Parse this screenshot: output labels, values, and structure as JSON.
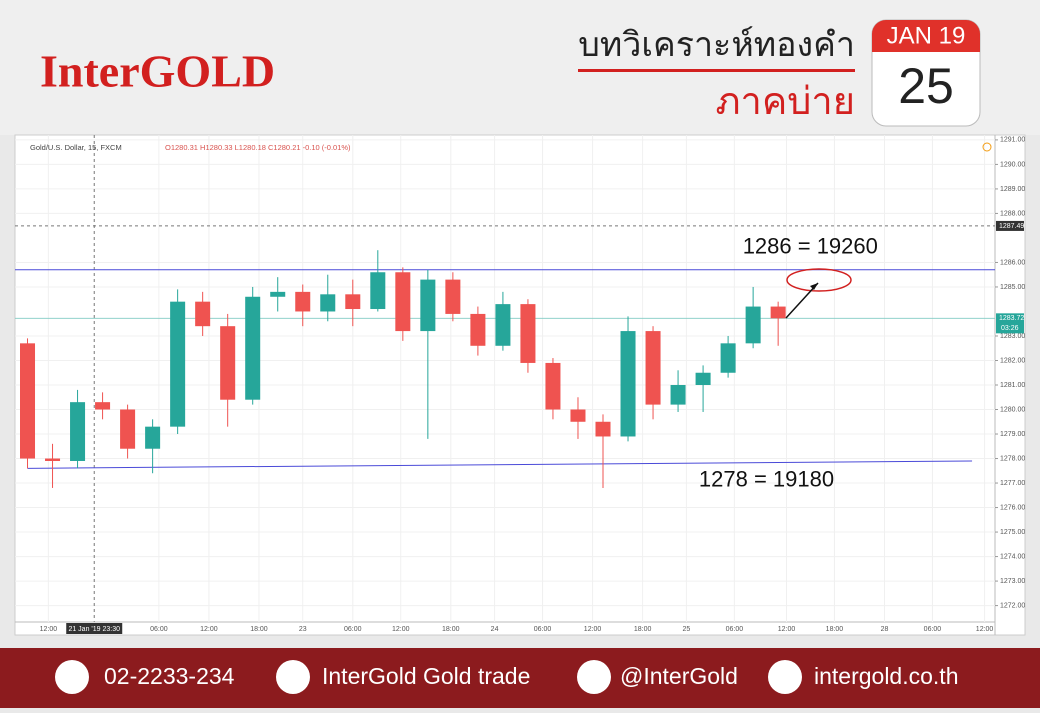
{
  "header": {
    "logo": "InterGOLD",
    "title": "บทวิเคราะห์ทองคำ",
    "subtitle": "ภาคบ่าย"
  },
  "calendar": {
    "month": "JAN 19",
    "day": "25"
  },
  "chart_data": {
    "type": "candlestick",
    "symbol": "Gold/U.S. Dollar, 15, FXCM",
    "ohlc_info": "O1280.31  H1280.33  L1280.18  C1280.21  -0.10 (-0.01%)",
    "up_color": "#26a69a",
    "down_color": "#ef5350",
    "x": [
      6,
      18,
      30,
      42,
      54,
      66,
      78,
      90,
      102,
      114,
      126,
      138,
      150,
      162,
      174,
      186,
      198,
      210,
      222,
      234,
      246,
      258,
      270,
      282,
      294,
      306,
      318,
      330,
      342,
      354,
      366
    ],
    "open": [
      1282.7,
      1278.0,
      1277.9,
      1280.3,
      1280.0,
      1278.4,
      1279.3,
      1284.4,
      1283.4,
      1280.4,
      1284.6,
      1284.8,
      1284.0,
      1284.7,
      1284.1,
      1285.6,
      1283.2,
      1285.3,
      1283.9,
      1282.6,
      1284.3,
      1281.9,
      1280.0,
      1279.5,
      1278.9,
      1283.2,
      1280.2,
      1281.0,
      1281.5,
      1282.7,
      1284.2
    ],
    "high": [
      1282.9,
      1278.6,
      1280.8,
      1280.7,
      1280.2,
      1279.6,
      1284.9,
      1284.8,
      1283.9,
      1285.0,
      1285.4,
      1285.1,
      1285.5,
      1285.3,
      1286.5,
      1285.8,
      1285.7,
      1285.6,
      1284.2,
      1284.8,
      1284.5,
      1282.1,
      1280.5,
      1279.8,
      1283.8,
      1283.4,
      1281.6,
      1281.8,
      1283.0,
      1285.0,
      1284.4
    ],
    "low": [
      1277.6,
      1276.8,
      1277.6,
      1279.6,
      1278.0,
      1277.4,
      1279.0,
      1283.0,
      1279.3,
      1280.2,
      1284.0,
      1283.4,
      1283.6,
      1283.4,
      1284.0,
      1282.8,
      1278.8,
      1283.6,
      1282.2,
      1282.4,
      1281.5,
      1279.6,
      1278.8,
      1276.8,
      1278.7,
      1279.6,
      1279.9,
      1279.9,
      1281.3,
      1282.5,
      1282.6
    ],
    "close": [
      1278.0,
      1277.9,
      1280.3,
      1280.0,
      1278.4,
      1279.3,
      1284.4,
      1283.4,
      1280.4,
      1284.6,
      1284.8,
      1284.0,
      1284.7,
      1284.1,
      1285.6,
      1283.2,
      1285.3,
      1283.9,
      1282.6,
      1284.3,
      1281.9,
      1280.0,
      1279.5,
      1278.9,
      1283.2,
      1280.2,
      1281.0,
      1281.5,
      1282.7,
      1284.2,
      1283.72
    ],
    "xlim": [
      0,
      470
    ],
    "xticks": [
      {
        "value": 16,
        "label": "12:00"
      },
      {
        "value": 69,
        "label": "06:00"
      },
      {
        "value": 93,
        "label": "12:00"
      },
      {
        "value": 117,
        "label": "18:00"
      },
      {
        "value": 138,
        "label": "23"
      },
      {
        "value": 162,
        "label": "06:00"
      },
      {
        "value": 185,
        "label": "12:00"
      },
      {
        "value": 209,
        "label": "18:00"
      },
      {
        "value": 230,
        "label": "24"
      },
      {
        "value": 253,
        "label": "06:00"
      },
      {
        "value": 277,
        "label": "12:00"
      },
      {
        "value": 301,
        "label": "18:00"
      },
      {
        "value": 322,
        "label": "25"
      },
      {
        "value": 345,
        "label": "06:00"
      },
      {
        "value": 370,
        "label": "12:00"
      },
      {
        "value": 393,
        "label": "18:00"
      },
      {
        "value": 417,
        "label": "28"
      },
      {
        "value": 440,
        "label": "06:00"
      },
      {
        "value": 465,
        "label": "12:00"
      }
    ],
    "ylim": [
      1270.8,
      1291.2
    ],
    "yticks": [
      {
        "value": 1272,
        "label": "1272.00"
      },
      {
        "value": 1273,
        "label": "1273.00"
      },
      {
        "value": 1274,
        "label": "1274.00"
      },
      {
        "value": 1275,
        "label": "1275.00"
      },
      {
        "value": 1276,
        "label": "1276.00"
      },
      {
        "value": 1277,
        "label": "1277.00"
      },
      {
        "value": 1278,
        "label": "1278.00"
      },
      {
        "value": 1279,
        "label": "1279.00"
      },
      {
        "value": 1280,
        "label": "1280.00"
      },
      {
        "value": 1281,
        "label": "1281.00"
      },
      {
        "value": 1282,
        "label": "1282.00"
      },
      {
        "value": 1283,
        "label": "1283.00"
      },
      {
        "value": 1285,
        "label": "1285.00"
      },
      {
        "value": 1286,
        "label": "1286.00"
      },
      {
        "value": 1288,
        "label": "1288.00"
      },
      {
        "value": 1289,
        "label": "1289.00"
      },
      {
        "value": 1290,
        "label": "1290.00"
      },
      {
        "value": 1291,
        "label": "1291.00"
      }
    ],
    "grid": true,
    "crosshair_time": {
      "value": 38,
      "label": "21 Jan '19 23:30"
    },
    "crosshair_price": {
      "value": 1287.49,
      "label": "1287.49"
    },
    "last_price": {
      "value": 1283.72,
      "label": "1283.72"
    },
    "countdown": "03:26",
    "resistance": {
      "value": 1285.7,
      "color": "#4a4ad8"
    },
    "support": {
      "x": [
        6,
        459
      ],
      "values": [
        1277.6,
        1277.9
      ],
      "color": "#4a4ad8"
    },
    "annotations": [
      {
        "text": "1286 = 19260",
        "x": 349,
        "y": 1286.6
      },
      {
        "text": "1278 = 19180",
        "x": 328,
        "y": 1277.1
      }
    ]
  },
  "footer": {
    "phone": "02-2233-234",
    "facebook": "InterGold Gold trade",
    "line": "@InterGold",
    "website": "intergold.co.th"
  }
}
